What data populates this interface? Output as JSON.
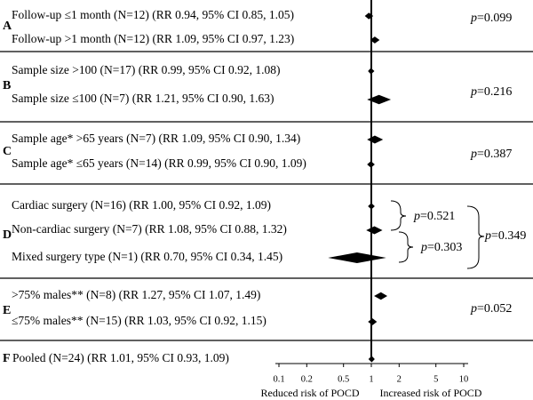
{
  "chart_data": {
    "type": "forest",
    "x_scale": "log",
    "x_ticks": [
      "0.1",
      "0.2",
      "0.5",
      "1",
      "2",
      "5",
      "10"
    ],
    "x_tick_values": [
      0.1,
      0.2,
      0.5,
      1,
      2,
      5,
      10
    ],
    "xlim": [
      0.1,
      10
    ],
    "reference_line": 1,
    "left_caption": "Reduced risk of POCD",
    "right_caption": "Increased risk of POCD",
    "groups": [
      {
        "letter": "A",
        "p_prefix": "p",
        "p_value": "=0.099",
        "rows": [
          {
            "label": "Follow-up ≤1 month (N=12) (RR 0.94, 95% CI 0.85, 1.05)",
            "rr": 0.94,
            "lo": 0.85,
            "hi": 1.05
          },
          {
            "label": "Follow-up >1 month (N=12) (RR 1.09, 95% CI 0.97, 1.23)",
            "rr": 1.09,
            "lo": 0.97,
            "hi": 1.23
          }
        ]
      },
      {
        "letter": "B",
        "p_prefix": "p",
        "p_value": "=0.216",
        "rows": [
          {
            "label": "Sample size >100 (N=17) (RR 0.99, 95% CI 0.92, 1.08)",
            "rr": 0.99,
            "lo": 0.92,
            "hi": 1.08
          },
          {
            "label": "Sample size ≤100 (N=7) (RR 1.21, 95% CI 0.90, 1.63)",
            "rr": 1.21,
            "lo": 0.9,
            "hi": 1.63
          }
        ]
      },
      {
        "letter": "C",
        "p_prefix": "p",
        "p_value": "=0.387",
        "rows": [
          {
            "label": "Sample age* >65 years (N=7) (RR 1.09, 95% CI 0.90, 1.34)",
            "rr": 1.09,
            "lo": 0.9,
            "hi": 1.34
          },
          {
            "label": "Sample age* ≤65 years (N=14) (RR 0.99, 95% CI 0.90, 1.09)",
            "rr": 0.99,
            "lo": 0.9,
            "hi": 1.09
          }
        ]
      },
      {
        "letter": "D",
        "rows": [
          {
            "label": "Cardiac surgery (N=16) (RR 1.00, 95% CI 0.92, 1.09)",
            "rr": 1.0,
            "lo": 0.92,
            "hi": 1.09
          },
          {
            "label": "Non-cardiac surgery (N=7) (RR 1.08, 95% CI 0.88, 1.32)",
            "rr": 1.08,
            "lo": 0.88,
            "hi": 1.32
          },
          {
            "label": "Mixed surgery type (N=1) (RR 0.70, 95% CI 0.34, 1.45)",
            "rr": 0.7,
            "lo": 0.34,
            "hi": 1.45
          }
        ],
        "comparisons": [
          {
            "p_prefix": "p",
            "p_value": "=0.521"
          },
          {
            "p_prefix": "p",
            "p_value": "=0.303"
          },
          {
            "p_prefix": "p",
            "p_value": "=0.349"
          }
        ]
      },
      {
        "letter": "E",
        "p_prefix": "p",
        "p_value": "=0.052",
        "rows": [
          {
            "label": ">75% males** (N=8) (RR 1.27, 95% CI 1.07, 1.49)",
            "rr": 1.27,
            "lo": 1.07,
            "hi": 1.49
          },
          {
            "label": "≤75% males** (N=15) (RR 1.03, 95% CI 0.92, 1.15)",
            "rr": 1.03,
            "lo": 0.92,
            "hi": 1.15
          }
        ]
      },
      {
        "letter": "F",
        "rows": [
          {
            "label": "Pooled (N=24) (RR 1.01, 95% CI 0.93, 1.09)",
            "rr": 1.01,
            "lo": 0.93,
            "hi": 1.09
          }
        ]
      }
    ]
  }
}
